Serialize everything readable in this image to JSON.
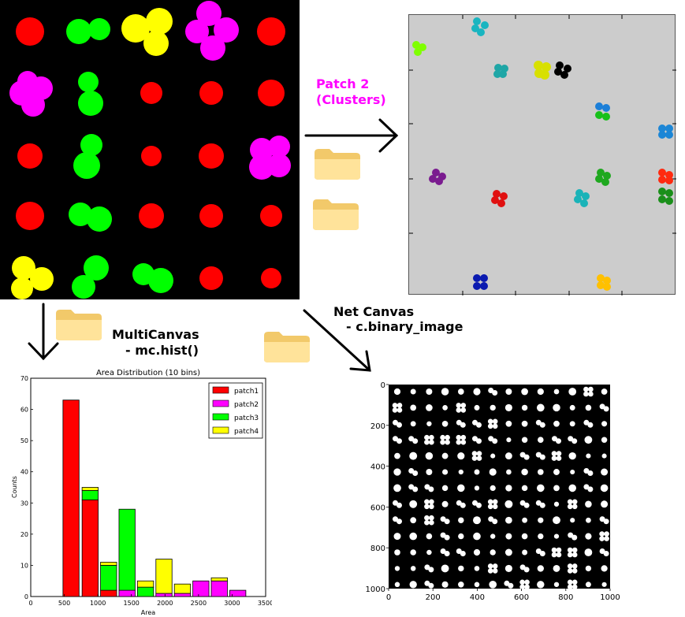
{
  "labels": {
    "patch2_line1": "Patch 2",
    "patch2_line2": "(Clusters)",
    "multicanvas_line1": "MultiCanvas",
    "multicanvas_line2": "- mc.hist()",
    "netcanvas_line1": "Net Canvas",
    "netcanvas_line2": "- c.binary_image"
  },
  "colors": {
    "patch2_label": "#ff00ff",
    "red": "#ff0000",
    "green": "#00ff00",
    "yellow": "#ffff00",
    "magenta": "#ff00ff"
  },
  "icons": [
    "folder-icon",
    "folder-icon",
    "folder-icon",
    "folder-icon"
  ],
  "chart_data": [
    {
      "type": "bar",
      "stacked": true,
      "title": "Area Distribution (10 bins)",
      "xlabel": "Area",
      "ylabel": "Counts",
      "xlim": [
        0,
        3500
      ],
      "ylim": [
        0,
        70
      ],
      "xticks": [
        0,
        500,
        1000,
        1500,
        2000,
        2500,
        3000,
        3500
      ],
      "yticks": [
        0,
        10,
        20,
        30,
        40,
        50,
        60,
        70
      ],
      "bin_width": 240,
      "bins": [
        600,
        885,
        1160,
        1435,
        1710,
        1985,
        2260,
        2535,
        2810,
        3085
      ],
      "legend": "top-right",
      "series": [
        {
          "name": "patch1",
          "color": "#ff0000",
          "values": [
            63,
            31,
            2,
            0,
            0,
            0,
            0,
            0,
            0,
            0
          ]
        },
        {
          "name": "patch2",
          "color": "#ff00ff",
          "values": [
            0,
            0,
            0,
            2,
            0,
            1,
            1,
            5,
            5,
            2
          ]
        },
        {
          "name": "patch3",
          "color": "#00ff00",
          "values": [
            0,
            3,
            8,
            26,
            3,
            0,
            0,
            0,
            0,
            0
          ]
        },
        {
          "name": "patch4",
          "color": "#ffff00",
          "values": [
            0,
            1,
            1,
            0,
            2,
            11,
            3,
            0,
            1,
            0
          ]
        }
      ]
    },
    {
      "type": "image",
      "xlim": [
        0,
        1000
      ],
      "ylim": [
        1000,
        0
      ],
      "xticks": [
        0,
        200,
        400,
        600,
        800,
        1000
      ],
      "yticks": [
        0,
        200,
        400,
        600,
        800,
        1000
      ]
    }
  ]
}
